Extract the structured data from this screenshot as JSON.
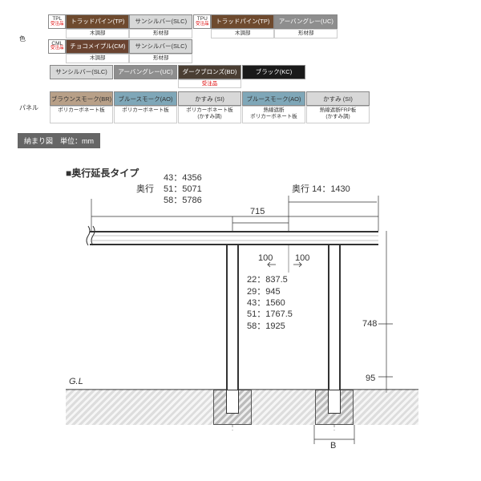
{
  "colors_label": "色",
  "panel_label": "パネル",
  "banner": "納まり図　単位：mm",
  "section_title": "■奥行延長タイプ",
  "swatch_palette": {
    "trad_pine": "#6e4a2e",
    "sun_silver": "#d7d8d8",
    "urban_grey": "#8e8e8e",
    "dark_bronze": "#4a3e33",
    "black": "#1a1a1a",
    "choco_maple": "#6a4330",
    "brown_smoke": "#b8a088",
    "blue_smoke": "#7fa7b8",
    "kasumi": "#d8d8d8"
  },
  "color_groups": [
    {
      "code": "TPL",
      "note": "受注品",
      "pair": [
        {
          "label": "トラッドパイン(TP)",
          "bg": "#6e4a2e",
          "fg": "#ffffff",
          "sub": "木調部"
        },
        {
          "label": "サンシルバー(SLC)",
          "bg": "#d7d8d8",
          "fg": "#333333",
          "sub": "形材部"
        }
      ]
    },
    {
      "code": "TPU",
      "note": "受注品",
      "pair": [
        {
          "label": "トラッドパイン(TP)",
          "bg": "#6e4a2e",
          "fg": "#ffffff",
          "sub": "木調部"
        },
        {
          "label": "アーバングレー(UC)",
          "bg": "#8e8e8e",
          "fg": "#ffffff",
          "sub": "形材部"
        }
      ]
    },
    {
      "code": "CML",
      "note": "受注品",
      "pair": [
        {
          "label": "チョコメイプル(CM)",
          "bg": "#6a4330",
          "fg": "#ffffff",
          "sub": "木調部"
        },
        {
          "label": "サンシルバー(SLC)",
          "bg": "#d7d8d8",
          "fg": "#333333",
          "sub": "形材部"
        }
      ]
    }
  ],
  "color_row2": [
    {
      "label": "サンシルバー(SLC)",
      "bg": "#d7d8d8",
      "fg": "#333333"
    },
    {
      "label": "アーバングレー(UC)",
      "bg": "#8e8e8e",
      "fg": "#ffffff"
    },
    {
      "label": "ダークブロンズ(BD)",
      "bg": "#4a3e33",
      "fg": "#ffffff",
      "note": "受注品"
    },
    {
      "label": "ブラック(KC)",
      "bg": "#1a1a1a",
      "fg": "#ffffff"
    }
  ],
  "panel_row": [
    {
      "label": "ブラウンスモーク(BR)",
      "bg": "#b8a088",
      "fg": "#333333",
      "sub": "ポリカーボネート板"
    },
    {
      "label": "ブルースモーク(AO)",
      "bg": "#7fa7b8",
      "fg": "#333333",
      "sub": "ポリカーボネート板"
    },
    {
      "label": "かすみ (SI)",
      "bg": "#d8d8d8",
      "fg": "#333333",
      "sub": "ポリカーボネート板\n(かすみ調)"
    },
    {
      "label": "ブルースモーク(AO)",
      "bg": "#7fa7b8",
      "fg": "#333333",
      "sub": "熱線遮断\nポリカーボネート板"
    },
    {
      "label": "かすみ (SI)",
      "bg": "#d8d8d8",
      "fg": "#333333",
      "sub": "熱線遮断FRP板\n(かすみ調)"
    }
  ],
  "diagram": {
    "okuyuki_label": "奥行",
    "okuyuki_left": [
      {
        "k": "43",
        "v": "4356"
      },
      {
        "k": "51",
        "v": "5071"
      },
      {
        "k": "58",
        "v": "5786"
      }
    ],
    "okuyuki_right": {
      "k": "14",
      "v": "1430"
    },
    "span_715": "715",
    "offset_100_l": "100",
    "offset_100_r": "100",
    "mid_label": "奥行",
    "mid_rows": [
      {
        "k": "22",
        "v": "837.5"
      },
      {
        "k": "29",
        "v": "945"
      },
      {
        "k": "43",
        "v": "1560"
      },
      {
        "k": "51",
        "v": "1767.5"
      },
      {
        "k": "58",
        "v": "1925"
      }
    ],
    "h_748": "748",
    "h_95": "95",
    "gl": "G.L",
    "b_label": "B",
    "ground_color": "#d9d9d9",
    "footing_color": "#cccccc"
  }
}
